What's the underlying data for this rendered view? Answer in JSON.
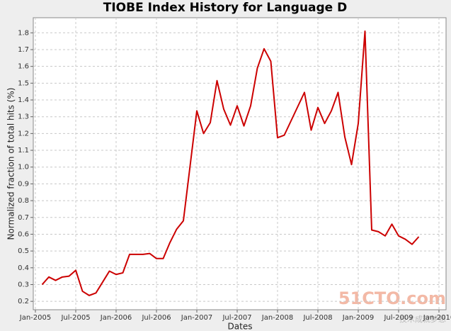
{
  "chart_data": {
    "type": "line",
    "title": "TIOBE Index History for Language D",
    "x_label": "Dates",
    "y_label": "Normalized fraction of total hits (%)",
    "watermark": "51CTO.com",
    "watermark_sub": "技术成就梦想",
    "x": [
      "2005-02",
      "2005-03",
      "2005-04",
      "2005-05",
      "2005-06",
      "2005-07",
      "2005-08",
      "2005-09",
      "2005-10",
      "2005-12",
      "2006-01",
      "2006-02",
      "2006-03",
      "2006-04",
      "2006-05",
      "2006-06",
      "2006-07",
      "2006-08",
      "2006-09",
      "2006-10",
      "2006-11",
      "2007-01",
      "2007-02",
      "2007-03",
      "2007-04",
      "2007-05",
      "2007-06",
      "2007-07",
      "2007-08",
      "2007-09",
      "2007-10",
      "2007-11",
      "2007-12",
      "2008-01",
      "2008-02",
      "2008-05",
      "2008-06",
      "2008-07",
      "2008-08",
      "2008-09",
      "2008-10",
      "2008-11",
      "2008-12",
      "2009-01",
      "2009-02",
      "2009-03",
      "2009-04",
      "2009-05",
      "2009-06",
      "2009-07",
      "2009-08",
      "2009-09",
      "2009-10"
    ],
    "series": [
      {
        "name": "D",
        "color": "#cc0000",
        "values": [
          0.3,
          0.345,
          0.325,
          0.345,
          0.35,
          0.385,
          0.26,
          0.235,
          0.25,
          0.38,
          0.36,
          0.37,
          0.48,
          0.48,
          0.48,
          0.485,
          0.455,
          0.455,
          0.55,
          0.63,
          0.68,
          1.335,
          1.2,
          1.265,
          1.515,
          1.345,
          1.25,
          1.365,
          1.245,
          1.365,
          1.59,
          1.705,
          1.63,
          1.175,
          1.19,
          1.445,
          1.22,
          1.355,
          1.26,
          1.335,
          1.445,
          1.18,
          1.015,
          1.26,
          1.81,
          0.625,
          0.615,
          0.59,
          0.66,
          0.59,
          0.57,
          0.54,
          0.585
        ]
      }
    ],
    "xlim": [
      "2005-01",
      "2010-01"
    ],
    "xticks": [
      {
        "value": "2005-01",
        "label": "Jan-2005"
      },
      {
        "value": "2005-07",
        "label": "Jul-2005"
      },
      {
        "value": "2006-01",
        "label": "Jan-2006"
      },
      {
        "value": "2006-07",
        "label": "Jul-2006"
      },
      {
        "value": "2007-01",
        "label": "Jan-2007"
      },
      {
        "value": "2007-07",
        "label": "Jul-2007"
      },
      {
        "value": "2008-01",
        "label": "Jan-2008"
      },
      {
        "value": "2008-07",
        "label": "Jul-2008"
      },
      {
        "value": "2009-01",
        "label": "Jan-2009"
      },
      {
        "value": "2009-07",
        "label": "Jul-2009"
      },
      {
        "value": "2010-01",
        "label": "Jan-2010"
      }
    ],
    "ylim": [
      0.15,
      1.89
    ],
    "yticks": [
      0.2,
      0.3,
      0.4,
      0.5,
      0.6,
      0.7,
      0.8,
      0.9,
      {
        "value": 1,
        "label": "1.0"
      },
      1.1,
      1.2,
      1.3,
      1.4,
      1.5,
      1.6,
      1.7,
      1.8
    ],
    "grid": true
  }
}
